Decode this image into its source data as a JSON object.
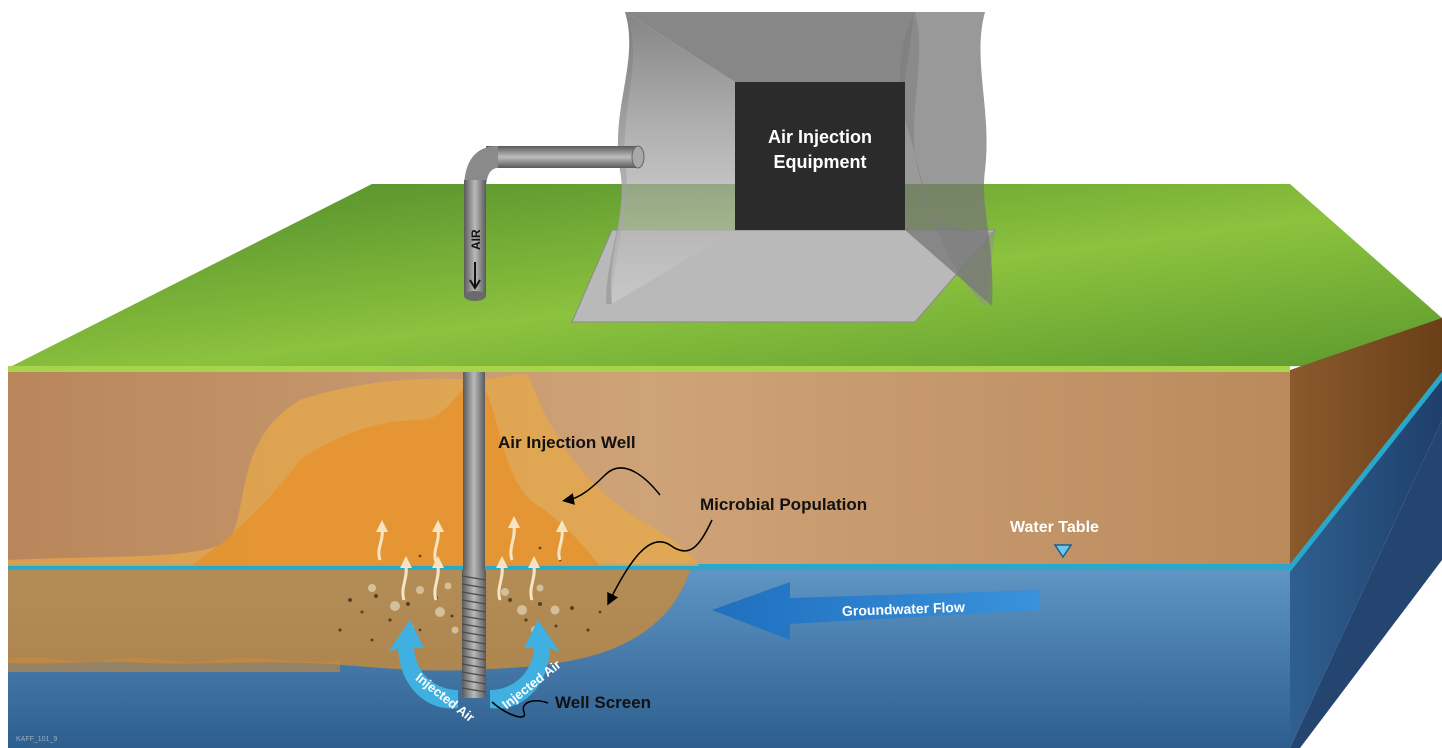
{
  "labels": {
    "equipment_line1": "Air Injection",
    "equipment_line2": "Equipment",
    "pipe_air": "AIR",
    "injection_well": "Air Injection Well",
    "microbial_population": "Microbial Population",
    "water_table": "Water Table",
    "groundwater_flow": "Groundwater Flow",
    "injected_air_left": "Injected Air",
    "injected_air_right": "Injected Air",
    "well_screen": "Well Screen",
    "figure_code": "KAFF_101_9"
  },
  "colors": {
    "ground_surface": "#7fb23a",
    "soil": "#c79a6a",
    "groundwater": "#3f7fb5",
    "water_table_line": "#2aa7c9",
    "contaminant_plume": "#e89a2a",
    "equipment_panel": "#2b2b2b",
    "flow_arrow": "#2a7cc9",
    "injected_air_arrow": "#3fb0e0"
  },
  "icons": {
    "water_table_marker": "triangle-down-icon",
    "flow_direction": "arrow-left-icon"
  }
}
